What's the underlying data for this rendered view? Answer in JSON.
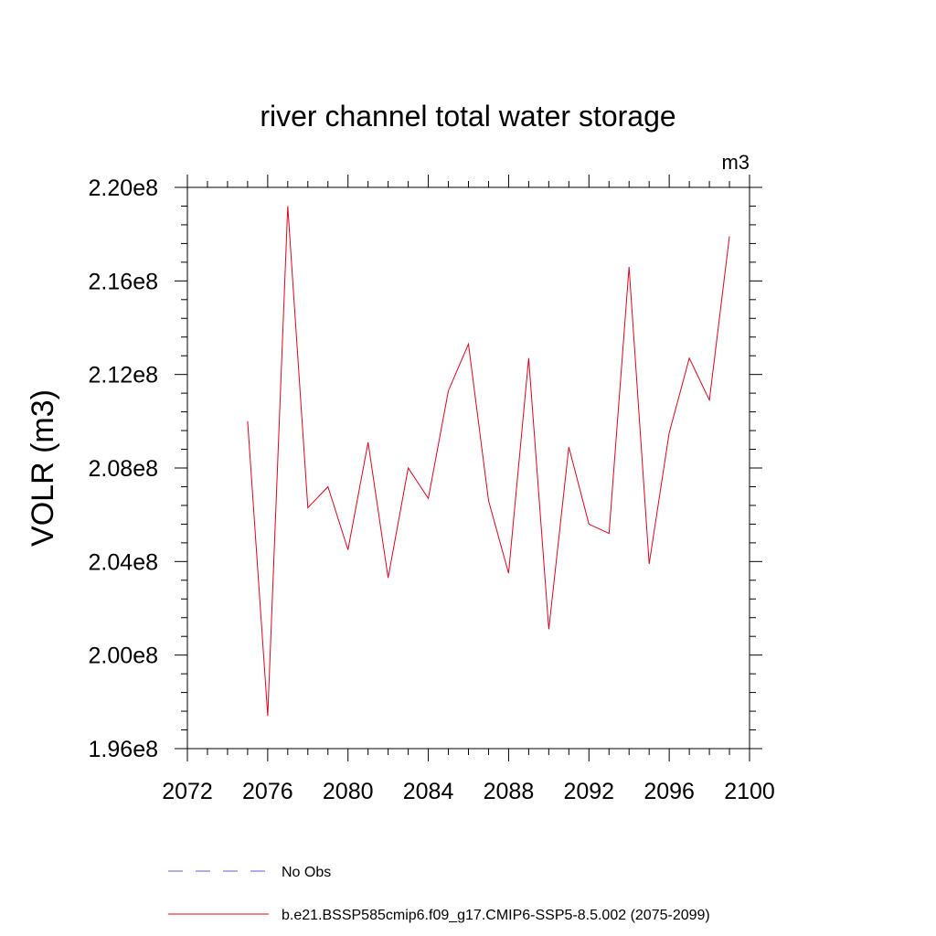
{
  "chart_data": {
    "type": "line",
    "title": "river channel total water storage",
    "units": "m3",
    "ylabel": "VOLR  (m3)",
    "xlabel": "",
    "xlim": [
      2072,
      2100
    ],
    "ylim": [
      196000000.0,
      220000000.0
    ],
    "x_ticks": [
      2072,
      2076,
      2080,
      2084,
      2088,
      2092,
      2096,
      2100
    ],
    "x_tick_labels": [
      "2072",
      "2076",
      "2080",
      "2084",
      "2088",
      "2092",
      "2096",
      "2100"
    ],
    "y_ticks": [
      196000000.0,
      200000000.0,
      204000000.0,
      208000000.0,
      212000000.0,
      216000000.0,
      220000000.0
    ],
    "y_tick_labels": [
      "1.96e8",
      "2.00e8",
      "2.04e8",
      "2.08e8",
      "2.12e8",
      "2.16e8",
      "2.20e8"
    ],
    "grid": false,
    "legend_position": "bottom",
    "series": [
      {
        "name": "b.e21.BSSP585cmip6.f09_g17.CMIP6-SSP5-8.5.002 (2075-2099)",
        "color": "#e8001c",
        "style": "solid",
        "x": [
          2075,
          2076,
          2077,
          2078,
          2079,
          2080,
          2081,
          2082,
          2083,
          2084,
          2085,
          2086,
          2087,
          2088,
          2089,
          2090,
          2091,
          2092,
          2093,
          2094,
          2095,
          2096,
          2097,
          2098,
          2099
        ],
        "values": [
          210000000.0,
          197400000.0,
          219200000.0,
          206300000.0,
          207200000.0,
          204500000.0,
          209100000.0,
          203300000.0,
          208000000.0,
          206700000.0,
          211300000.0,
          213300000.0,
          206600000.0,
          203500000.0,
          212700000.0,
          201100000.0,
          208900000.0,
          205600000.0,
          205200000.0,
          216600000.0,
          203900000.0,
          209500000.0,
          212700000.0,
          210900000.0,
          217900000.0
        ]
      }
    ],
    "legend": [
      {
        "label": "No Obs",
        "color": "#6a5acd",
        "style": "dashed"
      },
      {
        "label": "b.e21.BSSP585cmip6.f09_g17.CMIP6-SSP5-8.5.002 (2075-2099)",
        "color": "#e8001c",
        "style": "solid"
      }
    ]
  }
}
